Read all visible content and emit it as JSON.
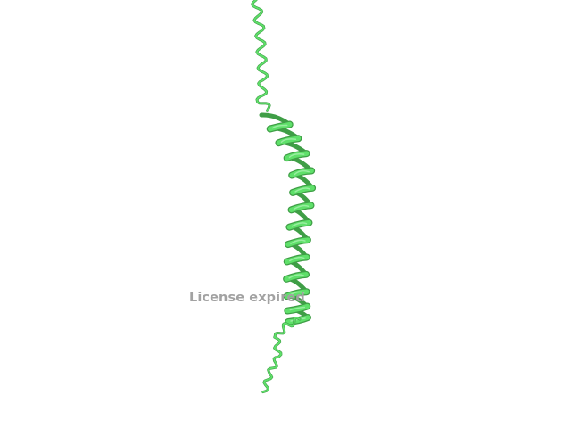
{
  "viewer": {
    "background_color": "#ffffff",
    "molecule": {
      "representation": "cartoon",
      "color": "#5fe06a",
      "shade_color": "#3f9e46",
      "highlight_color": "#a8f0ae"
    },
    "watermark": {
      "text": "License expired",
      "color": "#a2a2a2"
    }
  }
}
